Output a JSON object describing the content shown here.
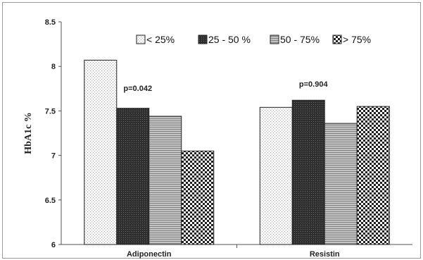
{
  "chart_data": {
    "type": "bar",
    "title": "",
    "xlabel": "",
    "ylabel": "HbA1c %",
    "ylim": [
      6,
      8.5
    ],
    "yticks": [
      "6",
      "6.5",
      "7",
      "7.5",
      "8",
      "8.5"
    ],
    "categories": [
      "Adiponectin",
      "Resistin"
    ],
    "legend_position": "top",
    "grid": false,
    "series": [
      {
        "name": "< 25%",
        "values": [
          8.07,
          7.54
        ],
        "fill": "#f2f2f2",
        "pattern": "light-dots"
      },
      {
        "name": "25 - 50 %",
        "values": [
          7.53,
          7.62
        ],
        "fill": "#3a3a3a",
        "pattern": "dark-dense"
      },
      {
        "name": "50 - 75%",
        "values": [
          7.44,
          7.36
        ],
        "fill": "#a0a0a0",
        "pattern": "gray-lines"
      },
      {
        "name": "> 75%",
        "values": [
          7.05,
          7.55
        ],
        "fill": "#777777",
        "pattern": "checker"
      }
    ],
    "annotations": [
      {
        "category": "Adiponectin",
        "text": "p=0.042"
      },
      {
        "category": "Resistin",
        "text": "p=0.904"
      }
    ]
  }
}
